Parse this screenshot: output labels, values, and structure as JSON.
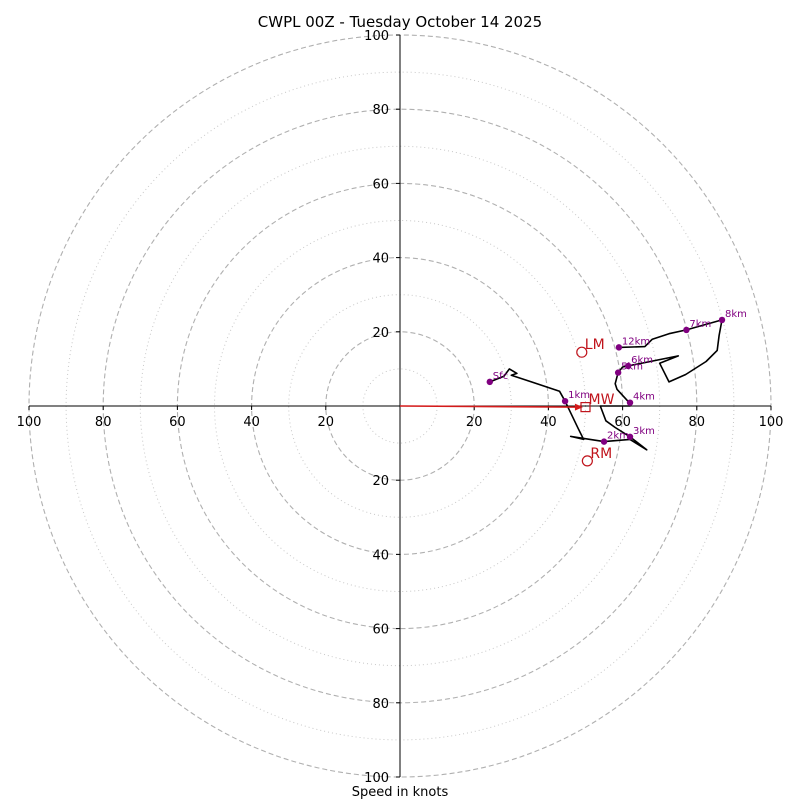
{
  "chart_data": {
    "type": "hodograph",
    "title": "CWPL 00Z - Tuesday October 14 2025",
    "xlabel": "Speed in knots",
    "range": [
      -100,
      100
    ],
    "ring_dashed": [
      20,
      40,
      60,
      80,
      100
    ],
    "ring_dotted": [
      10,
      30,
      50,
      70,
      90
    ],
    "x_ticks": [
      {
        "v": -100,
        "label": "100"
      },
      {
        "v": -80,
        "label": "80"
      },
      {
        "v": -60,
        "label": "60"
      },
      {
        "v": -40,
        "label": "40"
      },
      {
        "v": -20,
        "label": "20"
      },
      {
        "v": 20,
        "label": "20"
      },
      {
        "v": 40,
        "label": "40"
      },
      {
        "v": 60,
        "label": "60"
      },
      {
        "v": 80,
        "label": "80"
      },
      {
        "v": 100,
        "label": "100"
      }
    ],
    "y_ticks": [
      {
        "v": 100,
        "label": "100"
      },
      {
        "v": 80,
        "label": "80"
      },
      {
        "v": 60,
        "label": "60"
      },
      {
        "v": 40,
        "label": "40"
      },
      {
        "v": 20,
        "label": "20"
      },
      {
        "v": -20,
        "label": "20"
      },
      {
        "v": -40,
        "label": "40"
      },
      {
        "v": -60,
        "label": "60"
      },
      {
        "v": -80,
        "label": "80"
      },
      {
        "v": -100,
        "label": "100"
      }
    ],
    "trace": {
      "color": "#000000",
      "points": [
        [
          24.2,
          6.5
        ],
        [
          28,
          8
        ],
        [
          29.5,
          10
        ],
        [
          31.5,
          8.8
        ],
        [
          30,
          8.3
        ],
        [
          43,
          4
        ],
        [
          44.5,
          1.3
        ],
        [
          48,
          -6
        ],
        [
          49.5,
          -9
        ],
        [
          46,
          -8.2
        ],
        [
          55,
          -9.6
        ],
        [
          62,
          -9
        ],
        [
          66.5,
          -11.8
        ],
        [
          62,
          -8.3
        ],
        [
          58,
          -5.8
        ],
        [
          55.5,
          -4
        ],
        [
          54,
          0
        ],
        [
          62,
          0
        ],
        [
          61.8,
          0.9
        ],
        [
          58.5,
          4.5
        ],
        [
          58,
          6
        ],
        [
          58.8,
          9
        ],
        [
          60,
          10.5
        ],
        [
          61.5,
          10.8
        ],
        [
          75,
          13.5
        ],
        [
          70,
          11.5
        ],
        [
          72.5,
          6.5
        ],
        [
          77,
          8.5
        ],
        [
          82.5,
          12
        ],
        [
          85.5,
          15
        ],
        [
          86,
          19
        ],
        [
          86.8,
          23.2
        ],
        [
          77.2,
          20.5
        ],
        [
          72.5,
          19.5
        ],
        [
          68,
          18
        ],
        [
          66,
          16
        ],
        [
          59,
          15.8
        ]
      ]
    },
    "height_markers": [
      {
        "label": "Sfc",
        "u": 24.2,
        "v": 6.5
      },
      {
        "label": "1km",
        "u": 44.5,
        "v": 1.3
      },
      {
        "label": "2km",
        "u": 55,
        "v": -9.6
      },
      {
        "label": "3km",
        "u": 62,
        "v": -8.3
      },
      {
        "label": "4km",
        "u": 62,
        "v": 0.9
      },
      {
        "label": "5km",
        "u": 58.8,
        "v": 9
      },
      {
        "label": "6km",
        "u": 61.5,
        "v": 10.8
      },
      {
        "label": "7km",
        "u": 77.2,
        "v": 20.5
      },
      {
        "label": "8km",
        "u": 86.8,
        "v": 23.2
      },
      {
        "label": "12km",
        "u": 59,
        "v": 15.8
      }
    ],
    "storm_motion": [
      {
        "label": "LM",
        "u": 49,
        "v": 14.5,
        "marker": "circle"
      },
      {
        "label": "RM",
        "u": 50.5,
        "v": -14.8,
        "marker": "circle"
      },
      {
        "label": "MW",
        "u": 50,
        "v": -0.3,
        "marker": "square"
      }
    ],
    "shear_vector": {
      "from": [
        0,
        0
      ],
      "to": [
        48.5,
        -0.3
      ],
      "color": "#d41a1a"
    },
    "colors": {
      "trace": "#000000",
      "markers": "#800080",
      "motion": "#c0141c",
      "grid": "#b0b0b0"
    }
  }
}
